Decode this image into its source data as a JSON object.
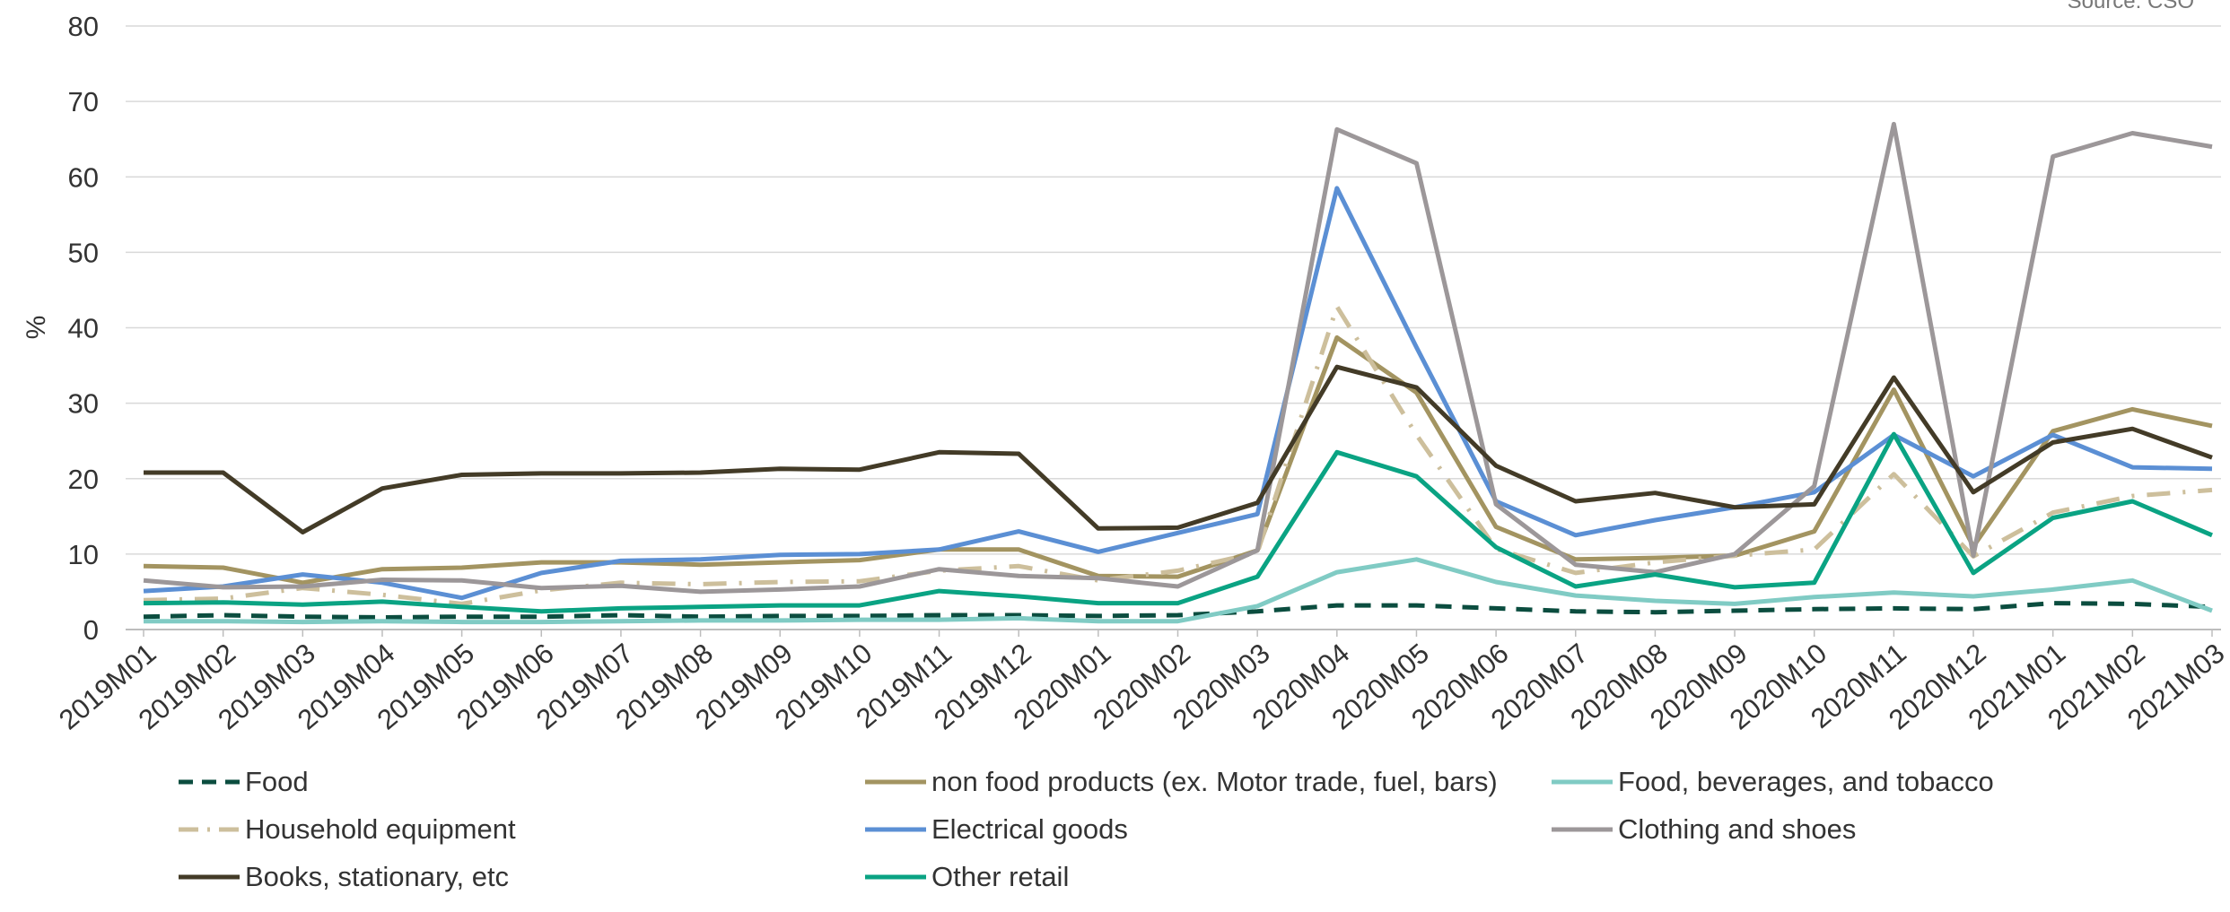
{
  "source": "Source: CSO",
  "chart_data": {
    "type": "line",
    "title": "",
    "xlabel": "",
    "ylabel": "%",
    "ylim": [
      0,
      80
    ],
    "yticks": [
      0,
      10,
      20,
      30,
      40,
      50,
      60,
      70,
      80
    ],
    "grid": true,
    "legend": "bottom",
    "categories": [
      "2019M01",
      "2019M02",
      "2019M03",
      "2019M04",
      "2019M05",
      "2019M06",
      "2019M07",
      "2019M08",
      "2019M09",
      "2019M10",
      "2019M11",
      "2019M12",
      "2020M01",
      "2020M02",
      "2020M03",
      "2020M04",
      "2020M05",
      "2020M06",
      "2020M07",
      "2020M08",
      "2020M09",
      "2020M10",
      "2020M11",
      "2020M12",
      "2021M01",
      "2021M02",
      "2021M03"
    ],
    "series": [
      {
        "name": "Food",
        "color": "#0b4d3f",
        "dash": "dash",
        "values": [
          1.7,
          1.9,
          1.7,
          1.6,
          1.7,
          1.7,
          1.9,
          1.7,
          1.8,
          1.8,
          1.9,
          1.9,
          1.8,
          1.9,
          2.4,
          3.2,
          3.2,
          2.8,
          2.4,
          2.3,
          2.5,
          2.7,
          2.8,
          2.7,
          3.5,
          3.4,
          3.0
        ]
      },
      {
        "name": "non food products (ex. Motor trade, fuel, bars)",
        "color": "#a39461",
        "dash": "solid",
        "values": [
          8.4,
          8.2,
          6.2,
          8.0,
          8.2,
          8.9,
          8.9,
          8.6,
          8.9,
          9.2,
          10.6,
          10.6,
          7.1,
          7.0,
          10.5,
          38.7,
          31.4,
          13.6,
          9.3,
          9.5,
          9.8,
          13.0,
          31.8,
          11.0,
          26.3,
          29.2,
          27.0
        ]
      },
      {
        "name": "Food, beverages, and tobacco",
        "color": "#80cbc4",
        "dash": "solid",
        "values": [
          1.1,
          1.1,
          1.0,
          1.1,
          1.0,
          1.0,
          1.1,
          1.2,
          1.2,
          1.3,
          1.3,
          1.5,
          1.1,
          1.1,
          3.1,
          7.6,
          9.3,
          6.3,
          4.5,
          3.8,
          3.4,
          4.3,
          4.9,
          4.4,
          5.3,
          6.5,
          2.5
        ]
      },
      {
        "name": "Household equipment",
        "color": "#cdbf9c",
        "dash": "dashdot",
        "values": [
          3.9,
          4.1,
          5.5,
          4.6,
          3.4,
          5.2,
          6.2,
          6.0,
          6.3,
          6.4,
          7.8,
          8.4,
          6.5,
          7.8,
          10.2,
          42.8,
          25.8,
          10.7,
          7.5,
          8.9,
          9.8,
          10.6,
          20.6,
          9.7,
          15.5,
          17.7,
          18.5
        ]
      },
      {
        "name": "Electrical goods",
        "color": "#5b8fd4",
        "dash": "solid",
        "values": [
          5.1,
          5.7,
          7.3,
          6.2,
          4.2,
          7.5,
          9.1,
          9.3,
          9.9,
          10.0,
          10.6,
          13.0,
          10.3,
          12.8,
          15.3,
          58.5,
          37.4,
          17.0,
          12.5,
          14.5,
          16.2,
          18.2,
          25.8,
          20.3,
          25.8,
          21.5,
          21.3
        ]
      },
      {
        "name": "Clothing and shoes",
        "color": "#9c9799",
        "dash": "solid",
        "values": [
          6.5,
          5.6,
          5.7,
          6.6,
          6.5,
          5.5,
          5.8,
          5.0,
          5.3,
          5.7,
          8.0,
          7.1,
          6.8,
          5.7,
          10.5,
          66.3,
          61.8,
          16.6,
          8.6,
          7.6,
          10.0,
          19.0,
          67.0,
          9.8,
          62.7,
          65.8,
          64.0
        ]
      },
      {
        "name": "Books, stationary, etc",
        "color": "#433b27",
        "dash": "solid",
        "values": [
          20.8,
          20.8,
          12.9,
          18.7,
          20.5,
          20.7,
          20.7,
          20.8,
          21.3,
          21.2,
          23.5,
          23.3,
          13.4,
          13.5,
          16.8,
          34.8,
          32.1,
          21.7,
          17.0,
          18.1,
          16.2,
          16.6,
          33.4,
          18.2,
          24.8,
          26.6,
          22.8
        ]
      },
      {
        "name": "Other retail",
        "color": "#0aa383",
        "dash": "solid",
        "values": [
          3.5,
          3.6,
          3.3,
          3.7,
          3.0,
          2.4,
          2.8,
          3.0,
          3.2,
          3.2,
          5.1,
          4.4,
          3.5,
          3.5,
          7.0,
          23.5,
          20.3,
          10.9,
          5.7,
          7.3,
          5.6,
          6.2,
          25.9,
          7.5,
          14.8,
          17.0,
          12.5
        ]
      }
    ]
  }
}
